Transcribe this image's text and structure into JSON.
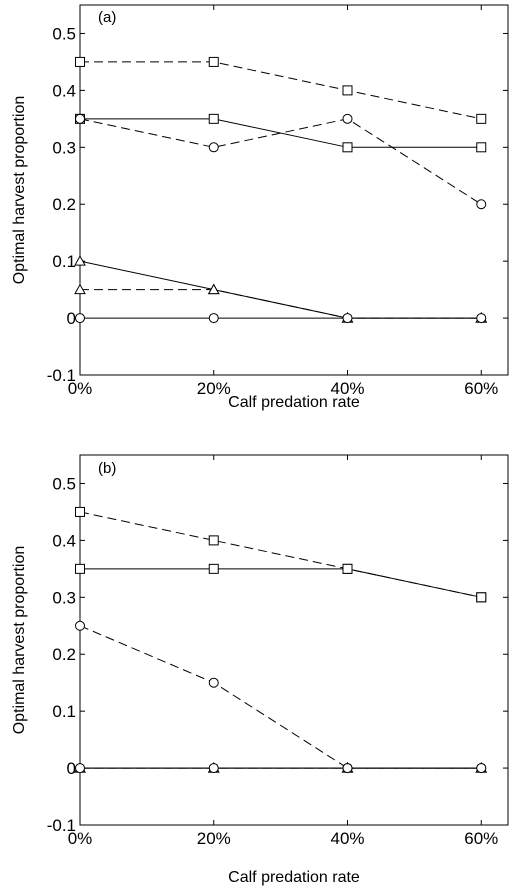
{
  "chart_data": [
    {
      "type": "line",
      "panel_label": "(a)",
      "xlabel": "Calf predation rate",
      "ylabel": "Optimal harvest proportion",
      "categories": [
        "0%",
        "20%",
        "40%",
        "60%"
      ],
      "x": [
        0,
        20,
        40,
        60
      ],
      "xlim": [
        0,
        64
      ],
      "ylim": [
        -0.1,
        0.55
      ],
      "yticks": [
        "-0.1",
        "0",
        "0.1",
        "0.2",
        "0.3",
        "0.4",
        "0.5"
      ],
      "ytick_values": [
        -0.1,
        0,
        0.1,
        0.2,
        0.3,
        0.4,
        0.5
      ],
      "grid": false,
      "series": [
        {
          "marker": "square",
          "line": "dashed",
          "values": [
            0.45,
            0.45,
            0.4,
            0.35
          ]
        },
        {
          "marker": "square",
          "line": "solid",
          "values": [
            0.35,
            0.35,
            0.3,
            0.3
          ]
        },
        {
          "marker": "circle",
          "line": "dashed",
          "values": [
            0.35,
            0.3,
            0.35,
            0.2
          ]
        },
        {
          "marker": "triangle",
          "line": "solid",
          "values": [
            0.1,
            0.05,
            0,
            0
          ]
        },
        {
          "marker": "triangle",
          "line": "dashed",
          "values": [
            0.05,
            0.05,
            0,
            0
          ]
        },
        {
          "marker": "circle",
          "line": "solid",
          "values": [
            0,
            0,
            0,
            0
          ]
        }
      ]
    },
    {
      "type": "line",
      "panel_label": "(b)",
      "xlabel": "Calf predation rate",
      "ylabel": "Optimal harvest proportion",
      "categories": [
        "0%",
        "20%",
        "40%",
        "60%"
      ],
      "x": [
        0,
        20,
        40,
        60
      ],
      "xlim": [
        0,
        64
      ],
      "ylim": [
        -0.1,
        0.55
      ],
      "yticks": [
        "-0.1",
        "0",
        "0.1",
        "0.2",
        "0.3",
        "0.4",
        "0.5"
      ],
      "ytick_values": [
        -0.1,
        0,
        0.1,
        0.2,
        0.3,
        0.4,
        0.5
      ],
      "grid": false,
      "series": [
        {
          "marker": "square",
          "line": "dashed",
          "values": [
            0.45,
            0.4,
            0.35,
            0.3
          ]
        },
        {
          "marker": "square",
          "line": "solid",
          "values": [
            0.35,
            0.35,
            0.35,
            0.3
          ]
        },
        {
          "marker": "circle",
          "line": "dashed",
          "values": [
            0.25,
            0.15,
            0,
            0
          ]
        },
        {
          "marker": "triangle",
          "line": "solid",
          "values": [
            0,
            0,
            0,
            0
          ]
        },
        {
          "marker": "triangle",
          "line": "dashed",
          "values": [
            0,
            0,
            0,
            0
          ]
        },
        {
          "marker": "circle",
          "line": "solid",
          "values": [
            0,
            0,
            0,
            0
          ]
        }
      ]
    }
  ]
}
